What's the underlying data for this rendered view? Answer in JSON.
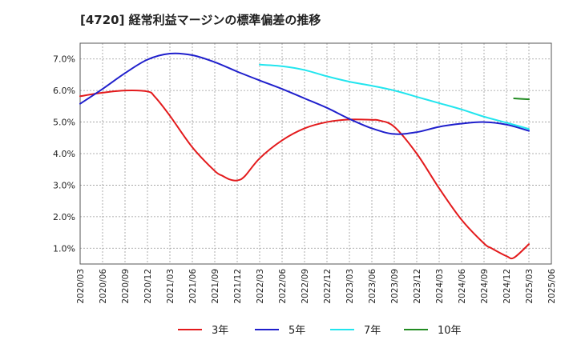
{
  "chart_data": {
    "type": "line",
    "title": "[4720]  経常利益マージンの標準偏差の推移",
    "xlabel": "",
    "ylabel": "",
    "ylim": [
      0.5,
      7.5
    ],
    "yticks": [
      1.0,
      2.0,
      3.0,
      4.0,
      5.0,
      6.0,
      7.0
    ],
    "ytick_labels": [
      "1.0%",
      "2.0%",
      "3.0%",
      "4.0%",
      "5.0%",
      "6.0%",
      "7.0%"
    ],
    "xtick_labels": [
      "2020/03",
      "2020/06",
      "2020/09",
      "2020/12",
      "2021/03",
      "2021/06",
      "2021/09",
      "2021/12",
      "2022/03",
      "2022/06",
      "2022/09",
      "2022/12",
      "2023/03",
      "2023/06",
      "2023/09",
      "2023/12",
      "2024/03",
      "2024/06",
      "2024/09",
      "2024/12",
      "2025/03",
      "2025/06"
    ],
    "grid": true,
    "legend_position": "bottom",
    "series": [
      {
        "name": "3年",
        "color": "#e31a1c",
        "x": [
          "2020/03",
          "2020/06",
          "2020/09",
          "2020/12",
          "2021/01",
          "2021/03",
          "2021/06",
          "2021/09",
          "2021/10",
          "2021/11",
          "2021/12",
          "2022/01",
          "2022/03",
          "2022/06",
          "2022/09",
          "2022/12",
          "2023/03",
          "2023/06",
          "2023/07",
          "2023/09",
          "2023/12",
          "2024/03",
          "2024/06",
          "2024/09",
          "2024/10",
          "2024/12",
          "2025/01",
          "2025/03"
        ],
        "values": [
          5.82,
          5.93,
          6.0,
          5.97,
          5.8,
          5.2,
          4.2,
          3.45,
          3.3,
          3.18,
          3.15,
          3.28,
          3.85,
          4.42,
          4.8,
          5.0,
          5.08,
          5.07,
          5.05,
          4.85,
          4.0,
          2.9,
          1.9,
          1.15,
          1.0,
          0.75,
          0.7,
          1.13
        ]
      },
      {
        "name": "5年",
        "color": "#1f1fcc",
        "x": [
          "2020/03",
          "2020/06",
          "2020/09",
          "2020/12",
          "2021/03",
          "2021/06",
          "2021/09",
          "2021/12",
          "2022/03",
          "2022/06",
          "2022/09",
          "2022/12",
          "2023/03",
          "2023/06",
          "2023/09",
          "2023/12",
          "2024/03",
          "2024/06",
          "2024/09",
          "2024/12",
          "2025/03"
        ],
        "values": [
          5.58,
          6.05,
          6.55,
          6.98,
          7.17,
          7.12,
          6.9,
          6.6,
          6.32,
          6.05,
          5.75,
          5.45,
          5.1,
          4.8,
          4.62,
          4.68,
          4.85,
          4.95,
          5.0,
          4.92,
          4.72
        ]
      },
      {
        "name": "7年",
        "color": "#22e5ee",
        "x": [
          "2022/03",
          "2022/06",
          "2022/09",
          "2022/12",
          "2023/03",
          "2023/06",
          "2023/09",
          "2023/12",
          "2024/03",
          "2024/06",
          "2024/09",
          "2024/12",
          "2025/03"
        ],
        "values": [
          6.82,
          6.77,
          6.65,
          6.45,
          6.28,
          6.15,
          6.0,
          5.8,
          5.6,
          5.4,
          5.17,
          4.98,
          4.78
        ]
      },
      {
        "name": "10年",
        "color": "#228b22",
        "x": [
          "2025/01",
          "2025/03"
        ],
        "values": [
          5.75,
          5.72
        ]
      }
    ]
  }
}
